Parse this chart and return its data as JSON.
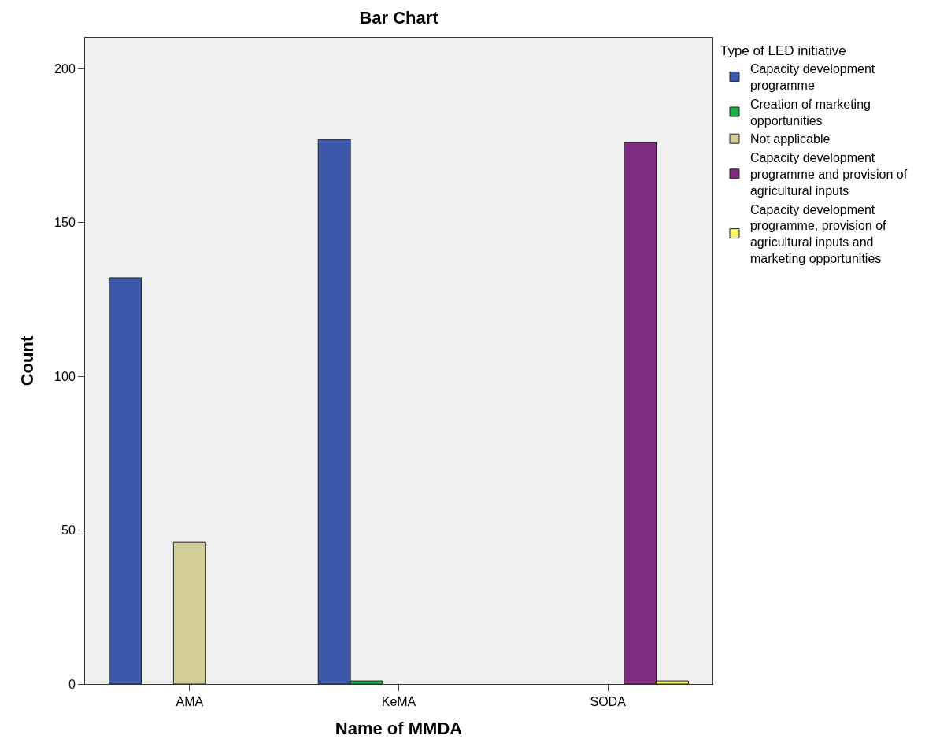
{
  "chart_data": {
    "type": "bar",
    "title": "Bar Chart",
    "xlabel": "Name of MMDA",
    "ylabel": "Count",
    "legend_title": "Type of LED initiative",
    "categories": [
      "AMA",
      "KeMA",
      "SODA"
    ],
    "series": [
      {
        "name": "Capacity development programme",
        "color": "#3d58aa",
        "values": [
          132,
          177,
          null
        ]
      },
      {
        "name": "Creation of marketing opportunities",
        "color": "#21b14a",
        "values": [
          null,
          1,
          null
        ]
      },
      {
        "name": "Not applicable",
        "color": "#d3ce98",
        "values": [
          46,
          null,
          null
        ]
      },
      {
        "name": "Capacity development programme and provision of agricultural inputs",
        "color": "#7e2a7e",
        "values": [
          null,
          null,
          176
        ]
      },
      {
        "name": "Capacity development programme, provision of agricultural inputs and marketing opportunities",
        "color": "#fbf46c",
        "values": [
          null,
          null,
          1
        ]
      }
    ],
    "ylim": [
      0,
      210
    ],
    "yticks": [
      0,
      50,
      100,
      150,
      200
    ],
    "grid": false,
    "legend": "top right"
  }
}
